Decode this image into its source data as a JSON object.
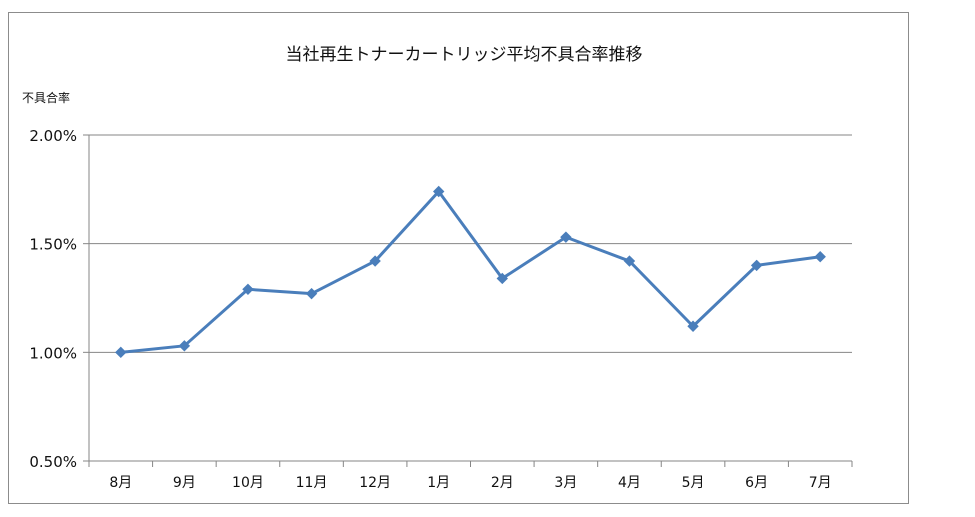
{
  "chart_data": {
    "type": "line",
    "title": "当社再生トナーカートリッジ平均不具合率推移",
    "ylabel": "不具合率",
    "xlabel": "",
    "categories": [
      "8月",
      "9月",
      "10月",
      "11月",
      "12月",
      "1月",
      "2月",
      "3月",
      "4月",
      "5月",
      "6月",
      "7月"
    ],
    "series": [
      {
        "name": "",
        "values": [
          1.0,
          1.03,
          1.29,
          1.27,
          1.42,
          1.74,
          1.34,
          1.53,
          1.42,
          1.12,
          1.4,
          1.44
        ]
      }
    ],
    "ylim": [
      0.5,
      2.0
    ],
    "yticks": [
      "0.50%",
      "1.00%",
      "1.50%",
      "2.00%"
    ],
    "ytick_values": [
      0.5,
      1.0,
      1.5,
      2.0
    ],
    "grid": true,
    "legend": "none",
    "colors": {
      "line": "#4a7ebb",
      "marker": "#4a7ebb",
      "grid": "#868686",
      "axis": "#868686"
    }
  }
}
